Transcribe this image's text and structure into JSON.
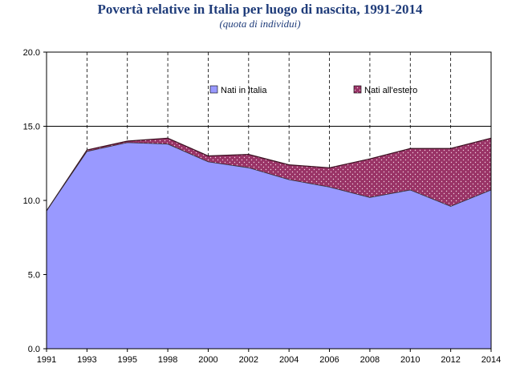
{
  "chart_data": {
    "type": "area",
    "title": "Povertà relative in Italia per luogo di nascita, 1991-2014",
    "subtitle": "(quota di individui)",
    "categories": [
      "1991",
      "1993",
      "1995",
      "1998",
      "2000",
      "2002",
      "2004",
      "2006",
      "2008",
      "2010",
      "2012",
      "2014"
    ],
    "series": [
      {
        "name": "Nati in Italia",
        "values": [
          9.3,
          13.3,
          13.9,
          13.8,
          12.6,
          12.2,
          11.4,
          10.9,
          10.2,
          10.7,
          9.6,
          10.7
        ],
        "color": "#9999ff"
      },
      {
        "name": "Nati all'estero",
        "values": [
          0.0,
          0.1,
          0.1,
          0.4,
          0.4,
          0.9,
          1.0,
          1.3,
          2.6,
          2.8,
          3.9,
          3.5
        ],
        "color": "#993366"
      }
    ],
    "stacked": true,
    "ylim": [
      0,
      20
    ],
    "yticks": [
      "0.0",
      "5.0",
      "10.0",
      "15.0",
      "20.0"
    ],
    "reference_line": 15.0,
    "grid": "dashed vertical lines at selected years",
    "legend": "inside top"
  }
}
